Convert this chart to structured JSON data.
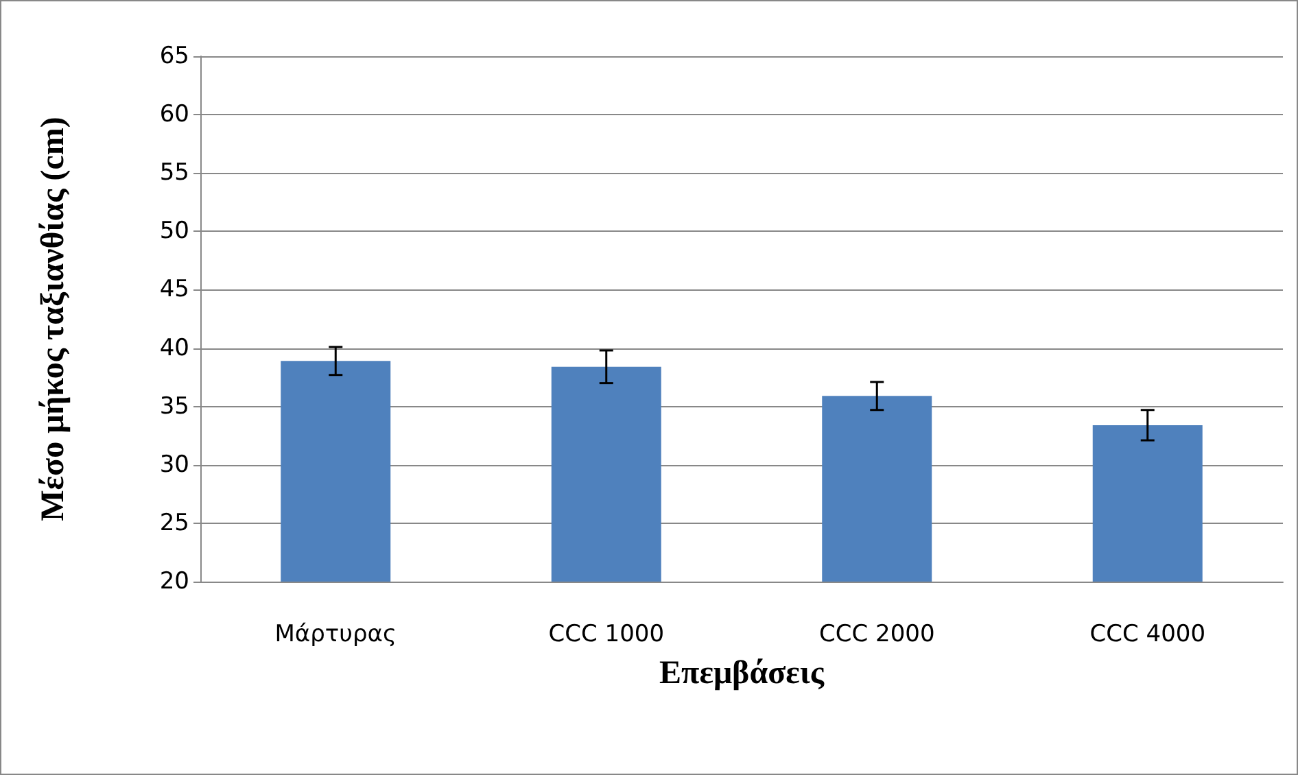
{
  "chart_data": {
    "type": "bar",
    "xlabel": "Επεμβάσεις",
    "ylabel": "Μέσο μήκος ταξιανθίας (cm)",
    "categories": [
      "Μάρτυρας",
      "CCC 1000",
      "CCC 2000",
      "CCC 4000"
    ],
    "values": [
      38.9,
      38.4,
      35.9,
      33.4
    ],
    "errors": [
      1.2,
      1.4,
      1.2,
      1.3
    ],
    "color": "#4f81bd",
    "ylim": [
      20,
      65
    ],
    "yticks": [
      20,
      25,
      30,
      35,
      40,
      45,
      50,
      55,
      60,
      65
    ],
    "grid": "y"
  }
}
